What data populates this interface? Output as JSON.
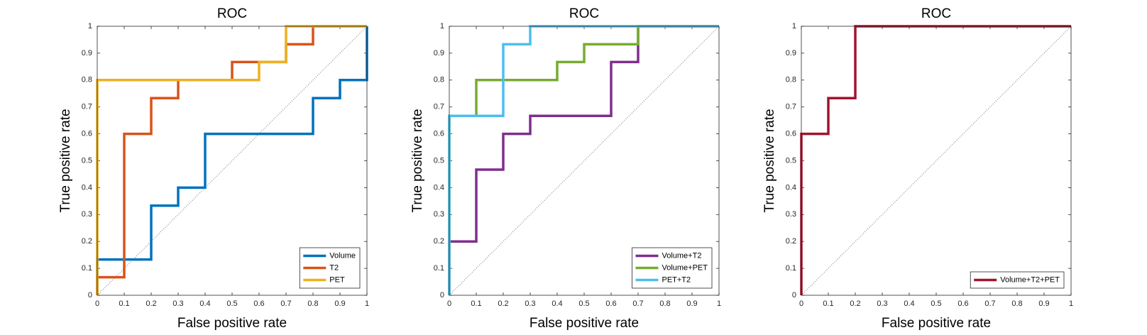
{
  "chart_data": [
    {
      "type": "line",
      "title": "ROC",
      "x_label": "False positive rate",
      "y_label": "True positive rate",
      "xlim": [
        0,
        1
      ],
      "ylim": [
        0,
        1
      ],
      "xticks": [
        0,
        0.1,
        0.2,
        0.3,
        0.4,
        0.5,
        0.6,
        0.7,
        0.8,
        0.9,
        1
      ],
      "yticks": [
        0,
        0.1,
        0.2,
        0.3,
        0.4,
        0.5,
        0.6,
        0.7,
        0.8,
        0.9,
        1
      ],
      "legend": "lower right",
      "series": [
        {
          "name": "Volume",
          "color": "#0072BD",
          "x": [
            0,
            0,
            0.2,
            0.2,
            0.3,
            0.3,
            0.4,
            0.4,
            0.8,
            0.8,
            0.9,
            0.9,
            1,
            1
          ],
          "values": [
            0,
            0.133,
            0.133,
            0.333,
            0.333,
            0.4,
            0.4,
            0.6,
            0.6,
            0.733,
            0.733,
            0.8,
            0.8,
            1
          ]
        },
        {
          "name": "T2",
          "color": "#D95319",
          "x": [
            0,
            0,
            0.1,
            0.1,
            0.2,
            0.2,
            0.3,
            0.3,
            0.5,
            0.5,
            0.7,
            0.7,
            0.8,
            0.8,
            1
          ],
          "values": [
            0,
            0.067,
            0.067,
            0.6,
            0.6,
            0.733,
            0.733,
            0.8,
            0.8,
            0.867,
            0.867,
            0.933,
            0.933,
            1,
            1
          ]
        },
        {
          "name": "PET",
          "color": "#EDB120",
          "x": [
            0,
            0,
            0.6,
            0.6,
            0.7,
            0.7,
            1
          ],
          "values": [
            0,
            0.8,
            0.8,
            0.867,
            0.867,
            1,
            1
          ]
        }
      ]
    },
    {
      "type": "line",
      "title": "ROC",
      "x_label": "False positive rate",
      "y_label": "True positive rate",
      "xlim": [
        0,
        1
      ],
      "ylim": [
        0,
        1
      ],
      "xticks": [
        0,
        0.1,
        0.2,
        0.3,
        0.4,
        0.5,
        0.6,
        0.7,
        0.8,
        0.9,
        1
      ],
      "yticks": [
        0,
        0.1,
        0.2,
        0.3,
        0.4,
        0.5,
        0.6,
        0.7,
        0.8,
        0.9,
        1
      ],
      "legend": "lower right",
      "series": [
        {
          "name": "Volume+T2",
          "color": "#7E2F8E",
          "x": [
            0,
            0,
            0.1,
            0.1,
            0.2,
            0.2,
            0.3,
            0.3,
            0.6,
            0.6,
            0.7,
            0.7,
            1
          ],
          "values": [
            0,
            0.2,
            0.2,
            0.467,
            0.467,
            0.6,
            0.6,
            0.667,
            0.667,
            0.867,
            0.867,
            1,
            1
          ]
        },
        {
          "name": "Volume+PET",
          "color": "#77AC30",
          "x": [
            0,
            0,
            0.1,
            0.1,
            0.4,
            0.4,
            0.5,
            0.5,
            0.7,
            0.7,
            1
          ],
          "values": [
            0,
            0.667,
            0.667,
            0.8,
            0.8,
            0.867,
            0.867,
            0.933,
            0.933,
            1,
            1
          ]
        },
        {
          "name": "PET+T2",
          "color": "#4DBEEE",
          "x": [
            0,
            0,
            0.2,
            0.2,
            0.3,
            0.3,
            1
          ],
          "values": [
            0,
            0.667,
            0.667,
            0.933,
            0.933,
            1,
            1
          ]
        }
      ]
    },
    {
      "type": "line",
      "title": "ROC",
      "x_label": "False positive rate",
      "y_label": "True positive rate",
      "xlim": [
        0,
        1
      ],
      "ylim": [
        0,
        1
      ],
      "xticks": [
        0,
        0.1,
        0.2,
        0.3,
        0.4,
        0.5,
        0.6,
        0.7,
        0.8,
        0.9,
        1
      ],
      "yticks": [
        0,
        0.1,
        0.2,
        0.3,
        0.4,
        0.5,
        0.6,
        0.7,
        0.8,
        0.9,
        1
      ],
      "legend": "lower right",
      "series": [
        {
          "name": "Volume+T2+PET",
          "color": "#A2142F",
          "x": [
            0,
            0,
            0.1,
            0.1,
            0.2,
            0.2,
            1
          ],
          "values": [
            0,
            0.6,
            0.6,
            0.733,
            0.733,
            1,
            1
          ]
        }
      ]
    }
  ]
}
